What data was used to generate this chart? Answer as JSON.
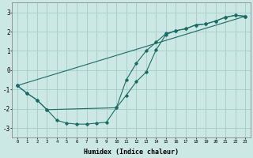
{
  "xlabel": "Humidex (Indice chaleur)",
  "bg_color": "#cce8e5",
  "grid_color": "#aad0cc",
  "line_color": "#1a6b63",
  "xlim": [
    -0.5,
    23.5
  ],
  "ylim": [
    -3.5,
    3.5
  ],
  "xticks": [
    0,
    1,
    2,
    3,
    4,
    5,
    6,
    7,
    8,
    9,
    10,
    11,
    12,
    13,
    14,
    15,
    16,
    17,
    18,
    19,
    20,
    21,
    22,
    23
  ],
  "yticks": [
    -3,
    -2,
    -1,
    0,
    1,
    2,
    3
  ],
  "curve1_x": [
    0,
    1,
    2,
    3,
    4,
    5,
    6,
    7,
    8,
    9,
    10,
    11,
    12,
    13,
    14,
    15,
    16,
    17,
    18,
    19,
    20,
    21,
    22,
    23
  ],
  "curve1_y": [
    -0.8,
    -1.2,
    -1.55,
    -2.05,
    -2.6,
    -2.75,
    -2.8,
    -2.8,
    -2.75,
    -2.7,
    -1.95,
    -1.3,
    -0.6,
    -0.1,
    1.05,
    1.85,
    2.05,
    2.15,
    2.35,
    2.4,
    2.55,
    2.75,
    2.85,
    2.8
  ],
  "curve2_x": [
    0,
    1,
    2,
    3,
    10,
    11,
    12,
    13,
    14,
    15,
    16,
    17,
    18,
    19,
    20,
    21,
    22,
    23
  ],
  "curve2_y": [
    -0.8,
    -1.2,
    -1.55,
    -2.05,
    -1.95,
    -0.5,
    0.35,
    1.0,
    1.45,
    1.9,
    2.05,
    2.15,
    2.35,
    2.4,
    2.55,
    2.75,
    2.85,
    2.8
  ],
  "curve3_x": [
    0,
    23
  ],
  "curve3_y": [
    -0.8,
    2.8
  ]
}
